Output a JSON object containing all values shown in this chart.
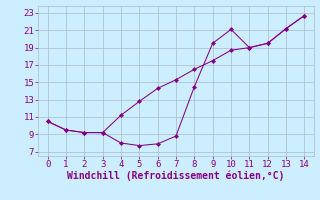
{
  "background_color": "#cceeff",
  "grid_color": "#aabbcc",
  "line_color": "#880088",
  "xlim": [
    -0.5,
    14.5
  ],
  "ylim": [
    6.5,
    23.8
  ],
  "xticks": [
    0,
    1,
    2,
    3,
    4,
    5,
    6,
    7,
    8,
    9,
    10,
    11,
    12,
    13,
    14
  ],
  "yticks": [
    7,
    9,
    11,
    13,
    15,
    17,
    19,
    21,
    23
  ],
  "line1_x": [
    0,
    1,
    2,
    3,
    4,
    5,
    6,
    7,
    8,
    9,
    10,
    11,
    12,
    13,
    14
  ],
  "line1_y": [
    10.5,
    9.5,
    9.2,
    9.2,
    8.0,
    7.7,
    7.9,
    8.8,
    14.5,
    19.5,
    21.1,
    19.0,
    19.5,
    21.2,
    22.7
  ],
  "line2_x": [
    0,
    1,
    2,
    3,
    4,
    5,
    6,
    7,
    8,
    9,
    10,
    11,
    12,
    13,
    14
  ],
  "line2_y": [
    10.5,
    9.5,
    9.2,
    9.2,
    11.2,
    12.8,
    14.3,
    15.3,
    16.5,
    17.5,
    18.7,
    19.0,
    19.5,
    21.2,
    22.7
  ],
  "xlabel": "Windchill (Refroidissement éolien,°C)",
  "tick_fontsize": 6.5,
  "xlabel_fontsize": 7,
  "marker": "D",
  "markersize": 2,
  "linewidth": 0.75
}
